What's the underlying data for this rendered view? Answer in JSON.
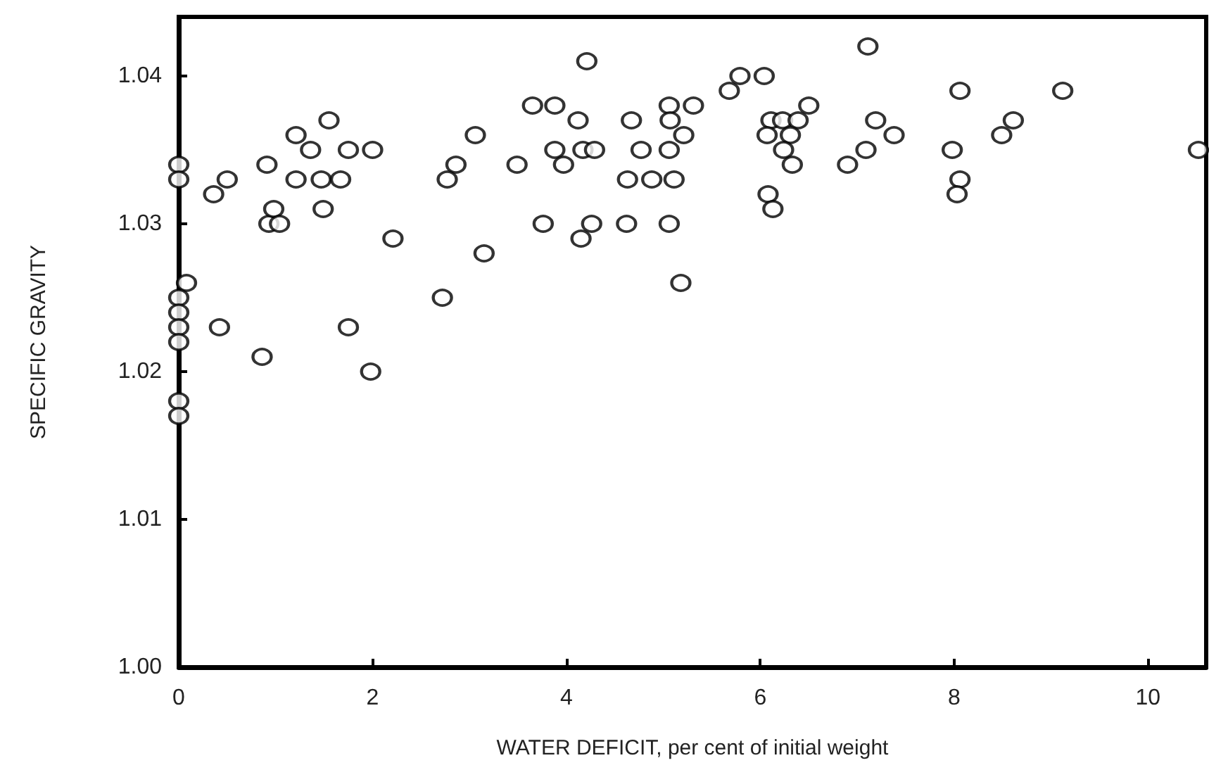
{
  "chart_data": {
    "type": "scatter",
    "xlabel": "WATER DEFICIT, per cent of initial weight",
    "ylabel": "SPECIFIC GRAVITY",
    "xlim": [
      0,
      10.6
    ],
    "xticks": [
      0,
      2,
      4,
      6,
      8,
      10
    ],
    "ylim": [
      1.0,
      1.044
    ],
    "yticks": [
      {
        "value": 1.0,
        "label": "1.00"
      },
      {
        "value": 1.01,
        "label": "1.01"
      },
      {
        "value": 1.02,
        "label": "1.02"
      },
      {
        "value": 1.03,
        "label": "1.03"
      },
      {
        "value": 1.04,
        "label": "1.04"
      }
    ],
    "grid": false,
    "marker": "circle",
    "series": [
      {
        "color": "#000000",
        "x": [
          0,
          0,
          0.08,
          0,
          0,
          0,
          0,
          0,
          0,
          0.36,
          0.5,
          0.42,
          0.91,
          0.86,
          0.93,
          0.98,
          1.04,
          1.21,
          1.21,
          1.36,
          1.47,
          1.55,
          1.49,
          1.67,
          1.75,
          1.75,
          2.0,
          1.98,
          2.21,
          3.15,
          2.72,
          3.06,
          2.86,
          2.77,
          4.21,
          3.65,
          3.88,
          4.12,
          3.49,
          3.88,
          3.97,
          4.17,
          4.29,
          3.76,
          4.26,
          4.15,
          4.62,
          4.67,
          4.77,
          4.63,
          4.88,
          5.11,
          5.06,
          5.31,
          5.07,
          5.21,
          5.06,
          5.06,
          5.18,
          5.68,
          5.79,
          6.04,
          6.5,
          6.11,
          6.23,
          6.39,
          6.07,
          6.31,
          6.24,
          6.33,
          6.08,
          6.13,
          7.11,
          7.19,
          7.38,
          7.09,
          6.9,
          8.06,
          7.98,
          8.06,
          8.03,
          8.61,
          8.49,
          9.12,
          10.52
        ],
        "values": [
          1.034,
          1.033,
          1.026,
          1.025,
          1.024,
          1.023,
          1.022,
          1.018,
          1.017,
          1.032,
          1.033,
          1.023,
          1.034,
          1.021,
          1.03,
          1.031,
          1.03,
          1.036,
          1.033,
          1.035,
          1.033,
          1.037,
          1.031,
          1.033,
          1.035,
          1.023,
          1.035,
          1.02,
          1.029,
          1.028,
          1.025,
          1.036,
          1.034,
          1.033,
          1.041,
          1.038,
          1.038,
          1.037,
          1.034,
          1.035,
          1.034,
          1.035,
          1.035,
          1.03,
          1.03,
          1.029,
          1.03,
          1.037,
          1.035,
          1.033,
          1.033,
          1.033,
          1.038,
          1.038,
          1.037,
          1.036,
          1.035,
          1.03,
          1.026,
          1.039,
          1.04,
          1.04,
          1.038,
          1.037,
          1.037,
          1.037,
          1.036,
          1.036,
          1.035,
          1.034,
          1.032,
          1.031,
          1.042,
          1.037,
          1.036,
          1.035,
          1.034,
          1.039,
          1.035,
          1.033,
          1.032,
          1.037,
          1.036,
          1.039,
          1.035
        ]
      }
    ]
  }
}
